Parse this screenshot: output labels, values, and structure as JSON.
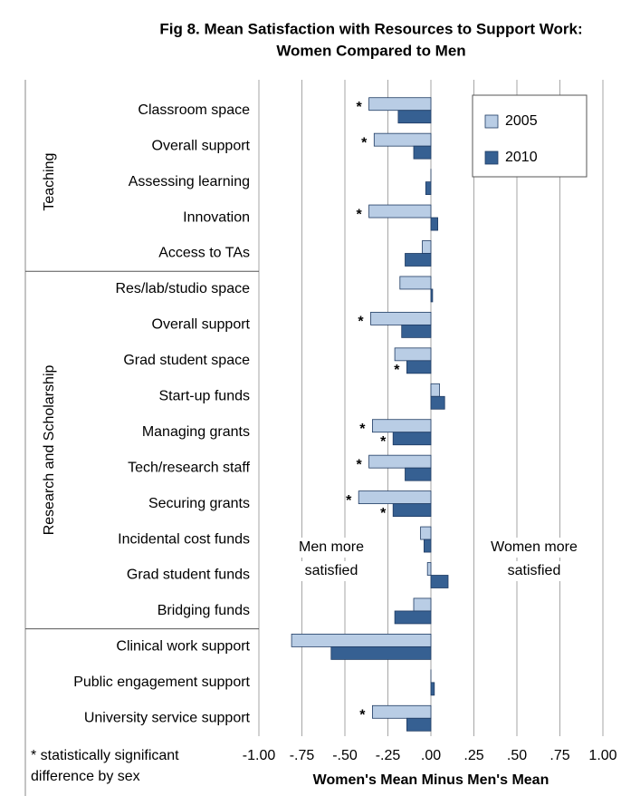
{
  "chart_data": {
    "type": "hbar",
    "title": [
      "Fig 8. Mean Satisfaction with Resources to Support Work:",
      "Women Compared to Men"
    ],
    "x_label": "Women's Mean Minus Men's Mean",
    "categories": [
      "Classroom space",
      "Overall support",
      "Assessing learning",
      "Innovation",
      "Access to TAs",
      "Res/lab/studio space",
      "Overall support",
      "Grad student space",
      "Start-up funds",
      "Managing grants",
      "Tech/research staff",
      "Securing grants",
      "Incidental cost funds",
      "Grad student funds",
      "Bridging funds",
      "Clinical work support",
      "Public engagement support",
      "University service support"
    ],
    "groups": [
      {
        "name": "Teaching",
        "first": 0,
        "last": 4
      },
      {
        "name": "Research and Scholarship",
        "first": 5,
        "last": 14
      }
    ],
    "series": [
      {
        "name": "2005",
        "color": "#b9cde5",
        "values": [
          -0.36,
          -0.33,
          0.0,
          -0.36,
          -0.05,
          -0.18,
          -0.35,
          -0.21,
          0.05,
          -0.34,
          -0.36,
          -0.42,
          -0.06,
          -0.02,
          -0.1,
          -0.81,
          0.0,
          -0.34
        ],
        "significant": [
          "*",
          "*",
          null,
          "*",
          null,
          null,
          "*",
          null,
          null,
          "*",
          "*",
          "*",
          null,
          null,
          null,
          null,
          null,
          "*"
        ]
      },
      {
        "name": "2010",
        "color": "#366092",
        "values": [
          -0.19,
          -0.1,
          -0.03,
          0.04,
          -0.15,
          0.01,
          -0.17,
          -0.14,
          0.08,
          -0.22,
          -0.15,
          -0.22,
          -0.04,
          0.1,
          -0.21,
          -0.58,
          0.02,
          -0.14
        ],
        "significant": [
          null,
          null,
          null,
          null,
          null,
          null,
          null,
          "*",
          null,
          "*",
          null,
          "*",
          null,
          null,
          null,
          null,
          null,
          null
        ]
      }
    ],
    "xlim": [
      -1,
      1
    ],
    "xticks": [
      {
        "value": -1,
        "label": "-1.00"
      },
      {
        "value": -0.75,
        "label": "-.75"
      },
      {
        "value": -0.5,
        "label": "-.50"
      },
      {
        "value": -0.25,
        "label": "-.25"
      },
      {
        "value": 0,
        "label": ".00"
      },
      {
        "value": 0.25,
        "label": ".25"
      },
      {
        "value": 0.5,
        "label": ".50"
      },
      {
        "value": 0.75,
        "label": ".75"
      },
      {
        "value": 1,
        "label": "1.00"
      }
    ],
    "grid": true,
    "legend": "upper right",
    "annotations": [
      [
        "Men more",
        "satisfied"
      ],
      [
        "Women more",
        "satisfied"
      ]
    ],
    "footnote": [
      "* statistically significant",
      "difference by sex"
    ]
  }
}
